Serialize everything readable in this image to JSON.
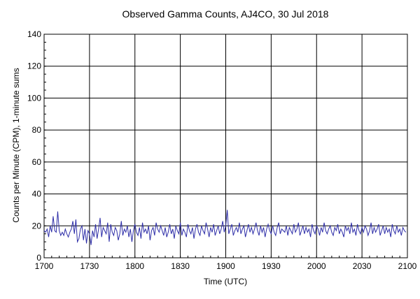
{
  "chart_data": {
    "type": "line",
    "title": "Observed Gamma Counts, AJ4CO, 30 Jul 2018",
    "xlabel": "Time (UTC)",
    "ylabel": "Counts per Minute (CPM), 1-minute sums",
    "ylim": [
      0,
      140
    ],
    "yticks": [
      0,
      20,
      40,
      60,
      80,
      100,
      120,
      140
    ],
    "xlim_minutes": [
      0,
      240
    ],
    "xtick_labels": [
      "1700",
      "1730",
      "1800",
      "1830",
      "1900",
      "1930",
      "2000",
      "2030",
      "2100"
    ],
    "grid": true,
    "line_color": "#2e2ea8",
    "series": [
      {
        "x_start": "1700",
        "x_step_minutes": 1,
        "values": [
          17,
          16,
          18,
          13,
          20,
          16,
          26,
          17,
          16,
          29,
          17,
          14,
          16,
          14,
          18,
          15,
          13,
          16,
          18,
          23,
          15,
          24,
          10,
          12,
          18,
          20,
          11,
          18,
          9,
          17,
          15,
          8,
          17,
          13,
          21,
          12,
          18,
          25,
          13,
          19,
          17,
          15,
          22,
          10,
          21,
          16,
          14,
          19,
          17,
          11,
          15,
          23,
          14,
          18,
          16,
          20,
          13,
          18,
          10,
          17,
          21,
          16,
          14,
          19,
          12,
          22,
          16,
          18,
          15,
          20,
          11,
          17,
          19,
          14,
          22,
          18,
          16,
          20,
          17,
          14,
          19,
          13,
          16,
          21,
          15,
          18,
          12,
          20,
          17,
          15,
          22,
          14,
          18,
          16,
          13,
          21,
          17,
          15,
          19,
          12,
          18,
          21,
          16,
          14,
          20,
          17,
          15,
          22,
          18,
          13,
          19,
          16,
          21,
          14,
          17,
          20,
          15,
          18,
          23,
          16,
          20,
          30,
          15,
          18,
          21,
          14,
          17,
          19,
          16,
          22,
          15,
          18,
          20,
          13,
          17,
          21,
          16,
          19,
          15,
          18,
          22,
          17,
          14,
          20,
          16,
          19,
          13,
          18,
          21,
          17,
          15,
          20,
          16,
          14,
          19,
          22,
          15,
          18,
          17,
          16,
          20,
          14,
          19,
          17,
          15,
          21,
          16,
          18,
          22,
          14,
          17,
          20,
          15,
          19,
          16,
          18,
          13,
          21,
          17,
          15,
          20,
          18,
          14,
          19,
          16,
          22,
          17,
          15,
          18,
          20,
          16,
          14,
          19,
          17,
          21,
          15,
          18,
          16,
          13,
          20,
          17,
          19,
          15,
          22,
          16,
          18,
          14,
          21,
          17,
          15,
          19,
          16,
          20,
          18,
          14,
          17,
          22,
          15,
          19,
          16,
          18,
          21,
          14,
          17,
          20,
          15,
          19,
          16,
          18,
          13,
          21,
          17,
          15,
          20,
          16,
          18,
          14,
          19,
          17,
          16
        ]
      }
    ]
  }
}
